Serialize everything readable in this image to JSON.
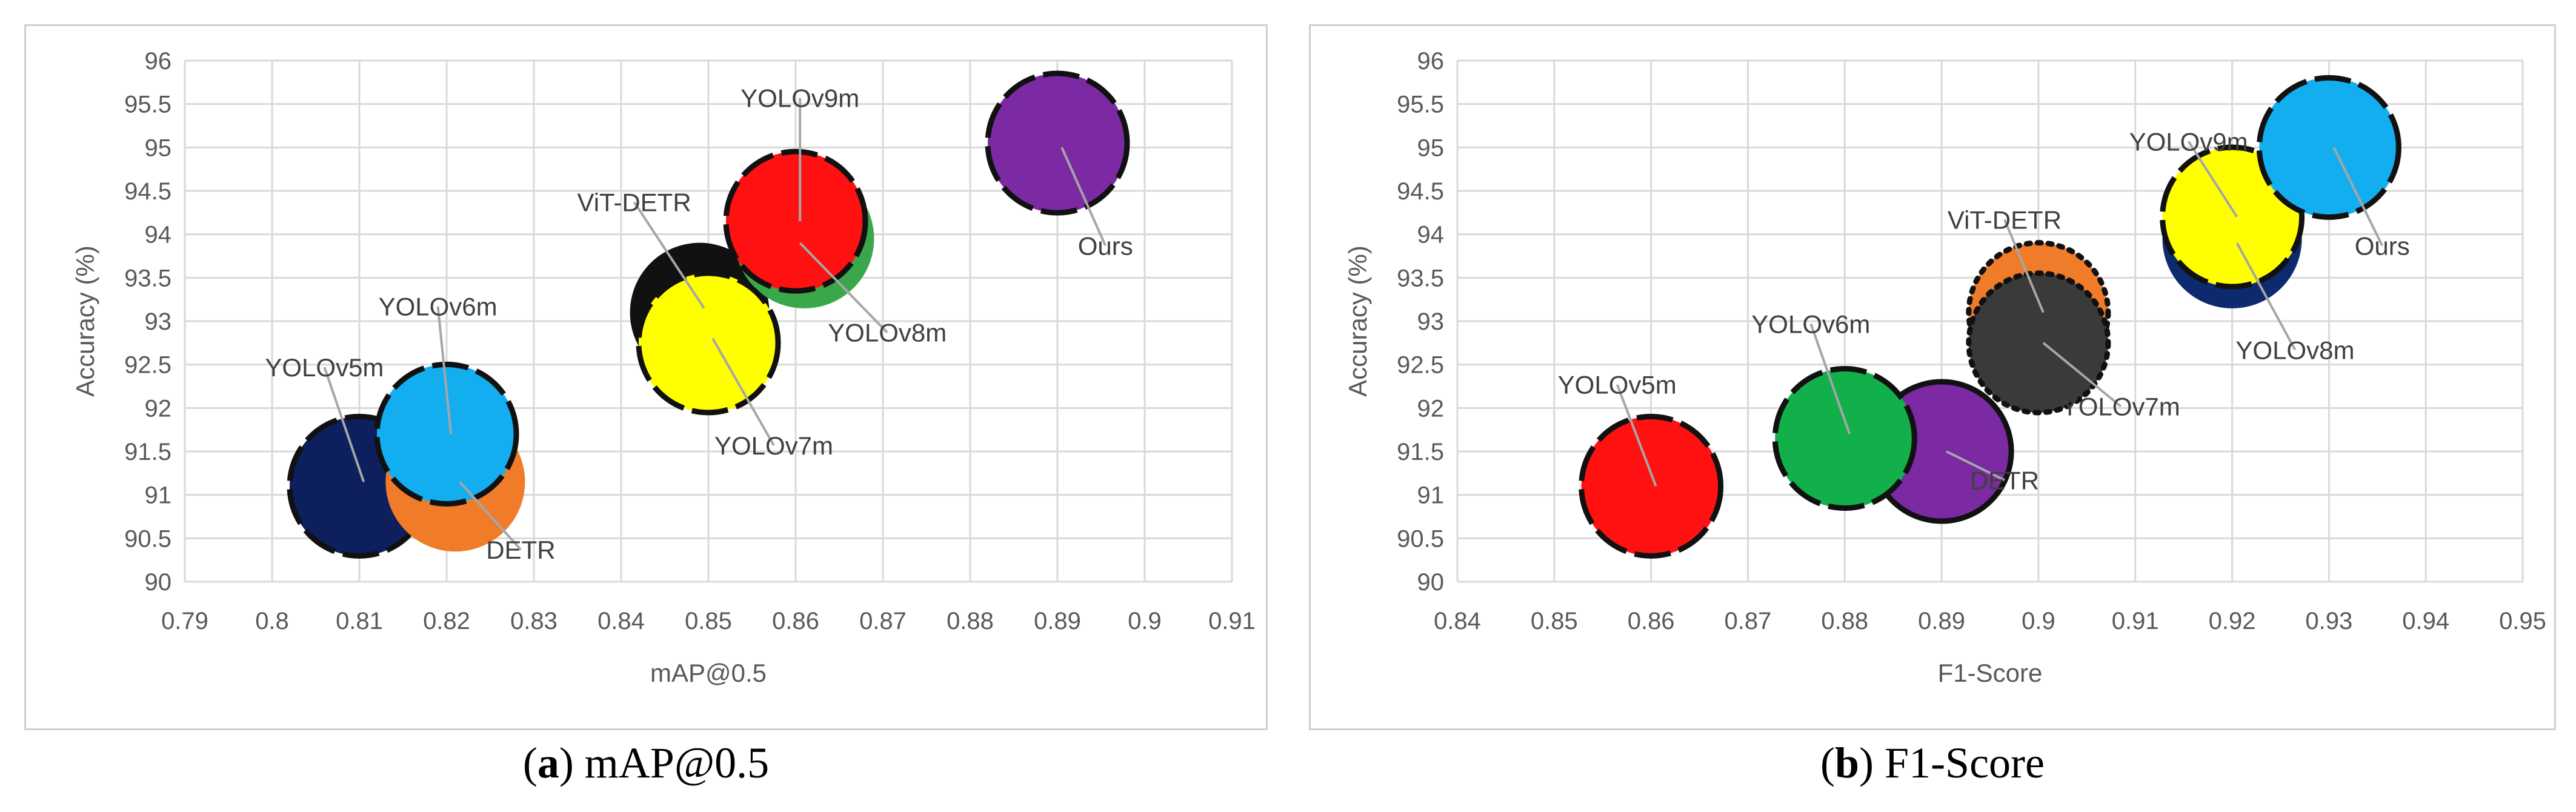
{
  "chart_data": [
    {
      "type": "scatter",
      "caption_letter": "a",
      "caption_text": "mAP@0.5",
      "xlabel": "mAP@0.5",
      "ylabel": "Accuracy (%)",
      "xlim": [
        0.79,
        0.91
      ],
      "ylim": [
        90,
        96
      ],
      "xticks": [
        "0.79",
        "0.8",
        "0.81",
        "0.82",
        "0.83",
        "0.84",
        "0.85",
        "0.86",
        "0.87",
        "0.88",
        "0.89",
        "0.9",
        "0.91"
      ],
      "yticks": [
        "90",
        "90.5",
        "91",
        "91.5",
        "92",
        "92.5",
        "93",
        "93.5",
        "94",
        "94.5",
        "95",
        "95.5",
        "96"
      ],
      "grid": true,
      "points": [
        {
          "name": "YOLOv5m",
          "x": 0.81,
          "y": 91.1,
          "color": "#0d1f5c",
          "border": "dashed"
        },
        {
          "name": "DETR",
          "x": 0.821,
          "y": 91.15,
          "color": "#f07c2a",
          "border": "none"
        },
        {
          "name": "YOLOv6m",
          "x": 0.82,
          "y": 91.7,
          "color": "#13aef0",
          "border": "dashed"
        },
        {
          "name": "ViT-DETR",
          "x": 0.849,
          "y": 93.1,
          "color": "#111111",
          "border": "none"
        },
        {
          "name": "YOLOv8m",
          "x": 0.861,
          "y": 93.95,
          "color": "#3aa84a",
          "border": "none"
        },
        {
          "name": "YOLOv9m",
          "x": 0.86,
          "y": 94.15,
          "color": "#ff1111",
          "border": "dashed"
        },
        {
          "name": "YOLOv7m",
          "x": 0.85,
          "y": 92.75,
          "color": "#ffff00",
          "border": "dashed"
        },
        {
          "name": "Ours",
          "x": 0.89,
          "y": 95.05,
          "color": "#7b2aa3",
          "border": "dashed"
        }
      ],
      "labels": [
        {
          "text": "YOLOv5m",
          "ax": 0.8105,
          "ay": 91.15,
          "tx": 0.806,
          "ty": 92.4
        },
        {
          "text": "YOLOv6m",
          "ax": 0.8205,
          "ay": 91.7,
          "tx": 0.819,
          "ty": 93.1
        },
        {
          "text": "DETR",
          "ax": 0.8215,
          "ay": 91.15,
          "tx": 0.8285,
          "ty": 90.3
        },
        {
          "text": "ViT-DETR",
          "ax": 0.8495,
          "ay": 93.15,
          "tx": 0.8415,
          "ty": 94.3
        },
        {
          "text": "YOLOv9m",
          "ax": 0.8605,
          "ay": 94.15,
          "tx": 0.8605,
          "ty": 95.5
        },
        {
          "text": "YOLOv8m",
          "ax": 0.8605,
          "ay": 93.9,
          "tx": 0.8705,
          "ty": 92.8
        },
        {
          "text": "YOLOv7m",
          "ax": 0.8505,
          "ay": 92.8,
          "tx": 0.8575,
          "ty": 91.5
        },
        {
          "text": "Ours",
          "ax": 0.8905,
          "ay": 95.0,
          "tx": 0.8955,
          "ty": 93.8
        }
      ]
    },
    {
      "type": "scatter",
      "caption_letter": "b",
      "caption_text": "F1-Score",
      "xlabel": "F1-Score",
      "ylabel": "Accuracy (%)",
      "xlim": [
        0.84,
        0.95
      ],
      "ylim": [
        90,
        96
      ],
      "xticks": [
        "0.84",
        "0.85",
        "0.86",
        "0.87",
        "0.88",
        "0.89",
        "0.9",
        "0.91",
        "0.92",
        "0.93",
        "0.94",
        "0.95"
      ],
      "yticks": [
        "90",
        "90.5",
        "91",
        "91.5",
        "92",
        "92.5",
        "93",
        "93.5",
        "94",
        "94.5",
        "95",
        "95.5",
        "96"
      ],
      "grid": true,
      "points": [
        {
          "name": "YOLOv5m",
          "x": 0.86,
          "y": 91.1,
          "color": "#ff1111",
          "border": "dashed"
        },
        {
          "name": "DETR",
          "x": 0.89,
          "y": 91.5,
          "color": "#7b2aa3",
          "border": "solid"
        },
        {
          "name": "YOLOv6m",
          "x": 0.88,
          "y": 91.65,
          "color": "#11b04a",
          "border": "dashed"
        },
        {
          "name": "ViT-DETR",
          "x": 0.9,
          "y": 93.1,
          "color": "#f07c2a",
          "border": "dotted"
        },
        {
          "name": "YOLOv7m",
          "x": 0.9,
          "y": 92.75,
          "color": "#3a3a3a",
          "border": "dotted"
        },
        {
          "name": "YOLOv8m",
          "x": 0.92,
          "y": 93.95,
          "color": "#0d2a6e",
          "border": "none"
        },
        {
          "name": "YOLOv9m",
          "x": 0.92,
          "y": 94.2,
          "color": "#ffff00",
          "border": "dashed"
        },
        {
          "name": "Ours",
          "x": 0.93,
          "y": 95.0,
          "color": "#13aef0",
          "border": "dashed"
        }
      ],
      "labels": [
        {
          "text": "YOLOv5m",
          "ax": 0.8605,
          "ay": 91.1,
          "tx": 0.8565,
          "ty": 92.2
        },
        {
          "text": "YOLOv6m",
          "ax": 0.8805,
          "ay": 91.7,
          "tx": 0.8765,
          "ty": 92.9
        },
        {
          "text": "DETR",
          "ax": 0.8905,
          "ay": 91.5,
          "tx": 0.8965,
          "ty": 91.1
        },
        {
          "text": "ViT-DETR",
          "ax": 0.9005,
          "ay": 93.1,
          "tx": 0.8965,
          "ty": 94.1
        },
        {
          "text": "YOLOv9m",
          "ax": 0.9205,
          "ay": 94.2,
          "tx": 0.9155,
          "ty": 95.0
        },
        {
          "text": "YOLOv8m",
          "ax": 0.9205,
          "ay": 93.9,
          "tx": 0.9265,
          "ty": 92.6
        },
        {
          "text": "YOLOv7m",
          "ax": 0.9005,
          "ay": 92.75,
          "tx": 0.9085,
          "ty": 91.95
        },
        {
          "text": "Ours",
          "ax": 0.9305,
          "ay": 95.0,
          "tx": 0.9355,
          "ty": 93.8
        }
      ]
    }
  ]
}
